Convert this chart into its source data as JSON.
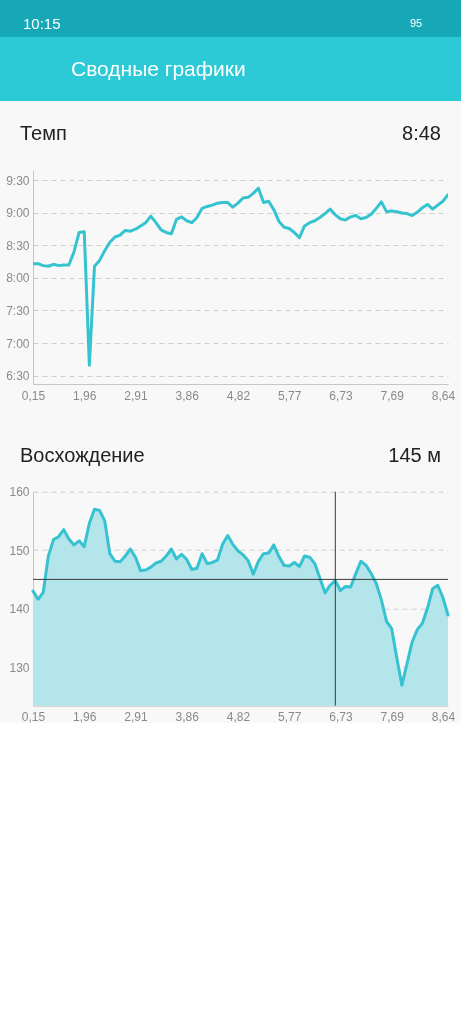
{
  "chart_data": [
    {
      "type": "other",
      "title": "Сводные графики",
      "annotations": [
        "10:15",
        "95"
      ]
    },
    {
      "type": "line",
      "title": "Темп",
      "annotations": [
        "8:48"
      ],
      "color": "#35c3cf",
      "categories": [
        "0,15",
        null,
        null,
        null,
        null,
        null,
        null,
        null,
        null,
        null,
        "1,96",
        null,
        null,
        null,
        null,
        null,
        null,
        null,
        null,
        null,
        "2,91",
        null,
        null,
        null,
        null,
        null,
        null,
        null,
        null,
        null,
        "3,86",
        null,
        null,
        null,
        null,
        null,
        null,
        null,
        null,
        null,
        "4,82",
        null,
        null,
        null,
        null,
        null,
        null,
        null,
        null,
        null,
        "5,77",
        null,
        null,
        null,
        null,
        null,
        null,
        null,
        null,
        null,
        "6,73",
        null,
        null,
        null,
        null,
        null,
        null,
        null,
        null,
        null,
        "7,69",
        null,
        null,
        null,
        null,
        null,
        null,
        null,
        null,
        null,
        "8,64",
        null
      ],
      "values": [
        8.22,
        8.22,
        8.19,
        8.18,
        8.21,
        8.19,
        8.2,
        8.2,
        8.4,
        8.7,
        8.71,
        6.66,
        8.18,
        8.27,
        8.42,
        8.55,
        8.63,
        8.66,
        8.73,
        8.72,
        8.75,
        8.8,
        8.85,
        8.95,
        8.85,
        8.74,
        8.7,
        8.68,
        8.9,
        8.94,
        8.88,
        8.85,
        8.93,
        9.07,
        9.1,
        9.12,
        9.15,
        9.16,
        9.16,
        9.09,
        9.15,
        9.23,
        9.24,
        9.3,
        9.38,
        9.16,
        9.18,
        9.05,
        8.87,
        8.78,
        8.76,
        8.7,
        8.62,
        8.8,
        8.85,
        8.88,
        8.93,
        8.99,
        9.06,
        8.97,
        8.91,
        8.89,
        8.94,
        8.96,
        8.91,
        8.93,
        8.98,
        9.07,
        9.17,
        9.02,
        9.03,
        9.02,
        9.0,
        8.99,
        8.96,
        9.01,
        9.08,
        9.13,
        9.06,
        9.12,
        9.18,
        9.28
      ],
      "ylim": [
        6.37,
        9.66
      ],
      "yticks": [
        {
          "value": 6.5,
          "label": "6:30"
        },
        {
          "value": 7,
          "label": "7:00"
        },
        {
          "value": 7.5,
          "label": "7:30"
        },
        {
          "value": 8,
          "label": "8:00"
        },
        {
          "value": 8.5,
          "label": "8:30"
        },
        {
          "value": 9,
          "label": "9:00"
        },
        {
          "value": 9.5,
          "label": "9:30"
        }
      ],
      "grid": "y"
    },
    {
      "type": "area",
      "title": "Восхождение",
      "annotations": [
        "145 м"
      ],
      "color": "#b4e5ea",
      "categories": [
        "0,15",
        null,
        null,
        null,
        null,
        null,
        null,
        null,
        null,
        null,
        "1,96",
        null,
        null,
        null,
        null,
        null,
        null,
        null,
        null,
        null,
        "2,91",
        null,
        null,
        null,
        null,
        null,
        null,
        null,
        null,
        null,
        "3,86",
        null,
        null,
        null,
        null,
        null,
        null,
        null,
        null,
        null,
        "4,82",
        null,
        null,
        null,
        null,
        null,
        null,
        null,
        null,
        null,
        "5,77",
        null,
        null,
        null,
        null,
        null,
        null,
        null,
        null,
        null,
        "6,73",
        null,
        null,
        null,
        null,
        null,
        null,
        null,
        null,
        null,
        "7,69",
        null,
        null,
        null,
        null,
        null,
        null,
        null,
        null,
        null,
        "8,64",
        null
      ],
      "values": [
        143.0,
        141.6,
        142.8,
        149.0,
        151.8,
        152.3,
        153.5,
        151.9,
        150.9,
        151.6,
        150.6,
        154.6,
        157.0,
        156.8,
        155.0,
        149.4,
        148.1,
        148.0,
        149.0,
        150.2,
        148.8,
        146.5,
        146.6,
        147.1,
        147.8,
        148.1,
        149.0,
        150.2,
        148.5,
        149.3,
        148.4,
        146.7,
        146.9,
        149.4,
        147.7,
        147.9,
        148.3,
        151.0,
        152.5,
        151.0,
        149.9,
        149.2,
        148.2,
        145.9,
        148.1,
        149.4,
        149.5,
        150.9,
        148.9,
        147.4,
        147.3,
        147.9,
        147.2,
        149.0,
        148.8,
        147.7,
        145.2,
        142.7,
        144.0,
        144.8,
        143.1,
        143.8,
        143.7,
        146.0,
        148.1,
        147.4,
        146.0,
        144.3,
        141.5,
        137.8,
        136.6,
        131.6,
        126.9,
        130.6,
        134.3,
        136.4,
        137.5,
        140.1,
        143.4,
        144.0,
        141.9,
        138.9
      ],
      "ylim": [
        123.4,
        160
      ],
      "yticks": [
        130,
        140,
        150,
        160
      ],
      "grid": "y",
      "ref_lines": [
        {
          "axis": "y",
          "value": 145,
          "color": "#3a3a3a"
        }
      ]
    }
  ]
}
